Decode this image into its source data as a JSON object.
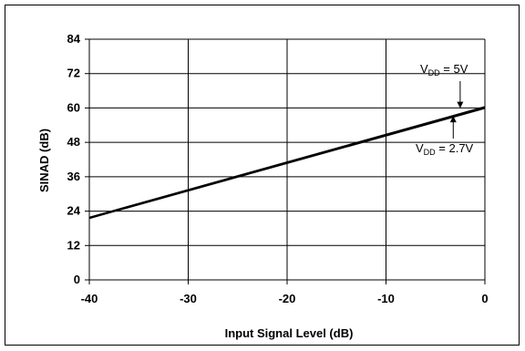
{
  "chart_data": {
    "type": "line",
    "title": "",
    "xlabel": "Input Signal Level (dB)",
    "ylabel": "SINAD (dB)",
    "xlim": [
      -40,
      0
    ],
    "ylim": [
      0,
      84
    ],
    "x_ticks": [
      "-40",
      "-30",
      "-20",
      "-10",
      "0"
    ],
    "y_ticks": [
      "0",
      "12",
      "24",
      "36",
      "48",
      "60",
      "72",
      "84"
    ],
    "grid": true,
    "series": [
      {
        "name": "VDD = 5V",
        "x": [
          -40,
          0
        ],
        "y": [
          21.8,
          60.4
        ]
      },
      {
        "name": "VDD = 2.7V",
        "x": [
          -40,
          0
        ],
        "y": [
          21.5,
          59.9
        ]
      }
    ],
    "annotations": [
      {
        "main": "V",
        "sub": "DD",
        "rest": " = 5V",
        "target_x": -2.5,
        "target_y": 59.0
      },
      {
        "main": "V",
        "sub": "DD",
        "rest": " = 2.7V",
        "target_x": -3.2,
        "target_y": 58.2
      }
    ]
  },
  "colors": {
    "line": "#000000",
    "grid": "#000000",
    "background": "#ffffff"
  }
}
